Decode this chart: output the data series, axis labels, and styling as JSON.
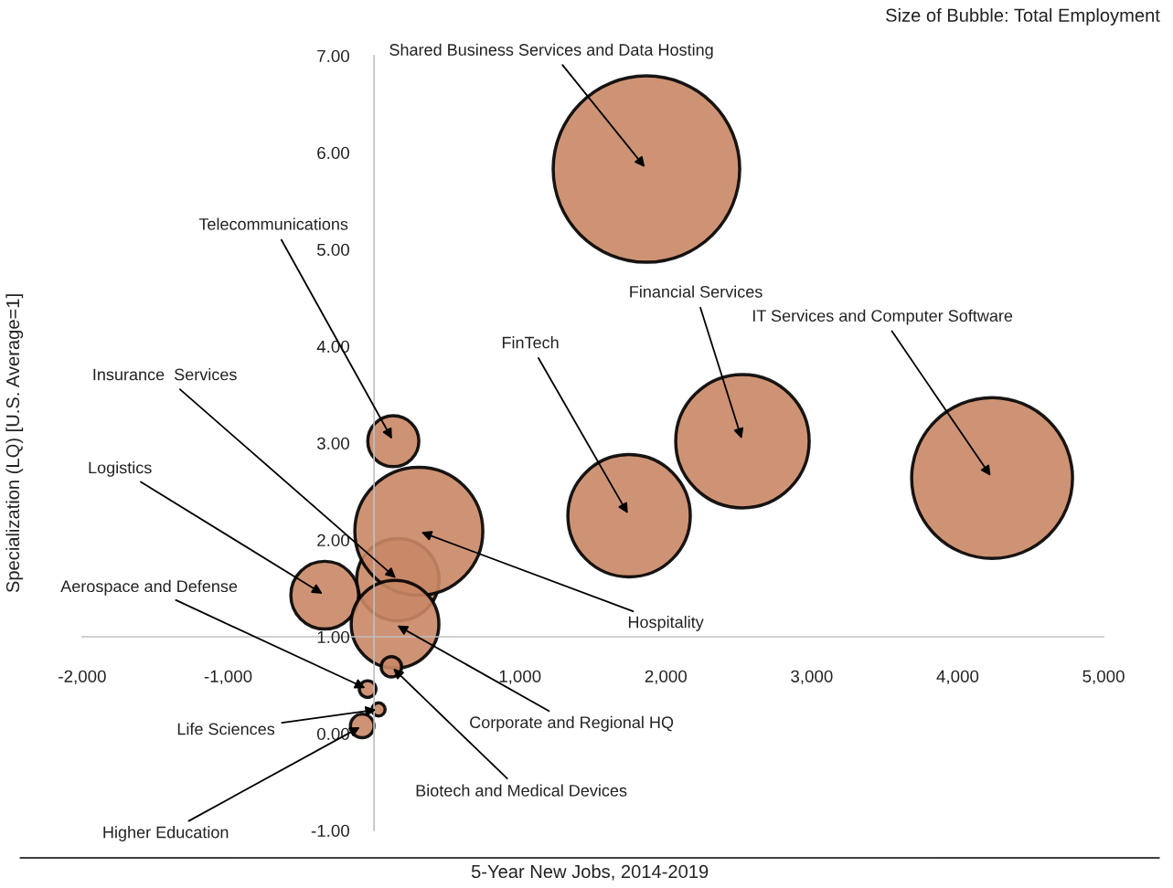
{
  "chart_data": {
    "type": "bubble",
    "title": "Size of Bubble: Total Employment",
    "xlabel": "5-Year New Jobs, 2014-2019",
    "ylabel": "Specialization (LQ) [U.S. Average=1]",
    "series": [
      {
        "color": "#c98766",
        "x": [
          1867,
          132,
          2525,
          4236,
          1748,
          163,
          -338,
          307,
          -44,
          144,
          31,
          119,
          -81
        ],
        "values": [
          5.83,
          3.02,
          3.02,
          2.64,
          2.25,
          1.59,
          1.43,
          2.09,
          0.46,
          1.13,
          0.25,
          0.69,
          0.08
        ],
        "sizes": [
          1,
          0.075,
          0.512,
          0.744,
          0.431,
          0.195,
          0.132,
          0.471,
          0.008,
          0.221,
          0.005,
          0.012,
          0.016
        ]
      }
    ],
    "annotations": [
      {
        "text": "Shared Business Services and Data Hosting",
        "x": 1867,
        "y": 5.83
      },
      {
        "text": "Telecommunications",
        "x": 132,
        "y": 3.02
      },
      {
        "text": "Financial Services",
        "x": 2525,
        "y": 3.02
      },
      {
        "text": "IT Services and Computer Software",
        "x": 4236,
        "y": 2.64
      },
      {
        "text": "FinTech",
        "x": 1748,
        "y": 2.25
      },
      {
        "text": "Insurance  Services",
        "x": 163,
        "y": 1.59
      },
      {
        "text": "Logistics",
        "x": -338,
        "y": 1.43
      },
      {
        "text": "Hospitality",
        "x": 307,
        "y": 2.09
      },
      {
        "text": "Aerospace and Defense",
        "x": -44,
        "y": 0.46
      },
      {
        "text": "Corporate and Regional HQ",
        "x": 144,
        "y": 1.13
      },
      {
        "text": "Life Sciences",
        "x": 31,
        "y": 0.25
      },
      {
        "text": "Biotech and Medical Devices",
        "x": 119,
        "y": 0.69
      },
      {
        "text": "Higher Education",
        "x": -81,
        "y": 0.08
      }
    ],
    "xlim": [
      -2000,
      5000
    ],
    "xticks": [
      {
        "value": -2000,
        "label": "-2,000"
      },
      {
        "value": -1000,
        "label": "-1,000"
      },
      {
        "value": 1000,
        "label": "1,000"
      },
      {
        "value": 2000,
        "label": "2,000"
      },
      {
        "value": 3000,
        "label": "3,000"
      },
      {
        "value": 4000,
        "label": "4,000"
      },
      {
        "value": 5000,
        "label": "5,000"
      }
    ],
    "ylim": [
      -1,
      7
    ],
    "yticks": [
      {
        "value": -1,
        "label": "-1.00"
      },
      {
        "value": 0,
        "label": "0.00"
      },
      {
        "value": 1,
        "label": "1.00"
      },
      {
        "value": 2,
        "label": "2.00"
      },
      {
        "value": 3,
        "label": "3.00"
      },
      {
        "value": 4,
        "label": "4.00"
      },
      {
        "value": 5,
        "label": "5.00"
      },
      {
        "value": 6,
        "label": "6.00"
      },
      {
        "value": 7,
        "label": "7.00"
      }
    ],
    "grid": false
  }
}
